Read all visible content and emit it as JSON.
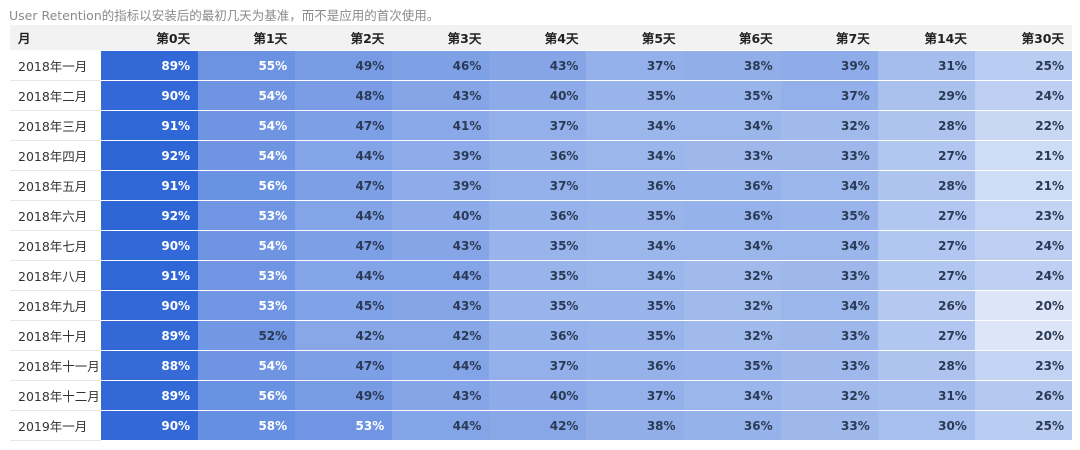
{
  "caption": "User Retention的指标以安装后的最初几天为基准，而不是应用的首次使用。",
  "chart_data": {
    "type": "heatmap",
    "columns": [
      "月",
      "第0天",
      "第1天",
      "第2天",
      "第3天",
      "第4天",
      "第5天",
      "第6天",
      "第7天",
      "第14天",
      "第30天"
    ],
    "rows": [
      {
        "month": "2018年一月",
        "values": [
          "89%",
          "55%",
          "49%",
          "46%",
          "43%",
          "37%",
          "38%",
          "39%",
          "31%",
          "25%"
        ]
      },
      {
        "month": "2018年二月",
        "values": [
          "90%",
          "54%",
          "48%",
          "43%",
          "40%",
          "35%",
          "35%",
          "37%",
          "29%",
          "24%"
        ]
      },
      {
        "month": "2018年三月",
        "values": [
          "91%",
          "54%",
          "47%",
          "41%",
          "37%",
          "34%",
          "34%",
          "32%",
          "28%",
          "22%"
        ]
      },
      {
        "month": "2018年四月",
        "values": [
          "92%",
          "54%",
          "44%",
          "39%",
          "36%",
          "34%",
          "33%",
          "33%",
          "27%",
          "21%"
        ]
      },
      {
        "month": "2018年五月",
        "values": [
          "91%",
          "56%",
          "47%",
          "39%",
          "37%",
          "36%",
          "36%",
          "34%",
          "28%",
          "21%"
        ]
      },
      {
        "month": "2018年六月",
        "values": [
          "92%",
          "53%",
          "44%",
          "40%",
          "36%",
          "35%",
          "36%",
          "35%",
          "27%",
          "23%"
        ]
      },
      {
        "month": "2018年七月",
        "values": [
          "90%",
          "54%",
          "47%",
          "43%",
          "35%",
          "34%",
          "34%",
          "34%",
          "27%",
          "24%"
        ]
      },
      {
        "month": "2018年八月",
        "values": [
          "91%",
          "53%",
          "44%",
          "44%",
          "35%",
          "34%",
          "32%",
          "33%",
          "27%",
          "24%"
        ]
      },
      {
        "month": "2018年九月",
        "values": [
          "90%",
          "53%",
          "45%",
          "43%",
          "35%",
          "35%",
          "32%",
          "34%",
          "26%",
          "20%"
        ]
      },
      {
        "month": "2018年十月",
        "values": [
          "89%",
          "52%",
          "42%",
          "42%",
          "36%",
          "35%",
          "32%",
          "33%",
          "27%",
          "20%"
        ]
      },
      {
        "month": "2018年十一月",
        "values": [
          "88%",
          "54%",
          "47%",
          "44%",
          "37%",
          "36%",
          "35%",
          "33%",
          "28%",
          "23%"
        ]
      },
      {
        "month": "2018年十二月",
        "values": [
          "89%",
          "56%",
          "49%",
          "43%",
          "40%",
          "37%",
          "34%",
          "32%",
          "31%",
          "26%"
        ]
      },
      {
        "month": "2019年一月",
        "values": [
          "90%",
          "58%",
          "53%",
          "44%",
          "42%",
          "38%",
          "36%",
          "33%",
          "30%",
          "25%"
        ]
      }
    ],
    "color_scale": {
      "low": "#dce6f8",
      "high": "#2f66d6"
    }
  }
}
